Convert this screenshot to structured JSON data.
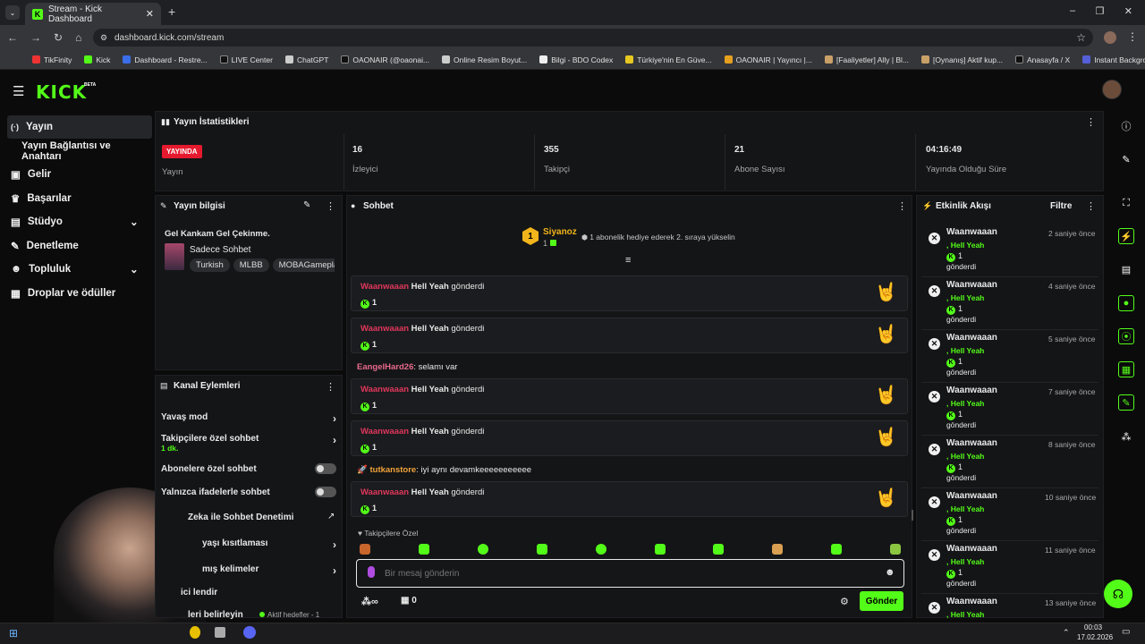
{
  "browser": {
    "tab_title": "Stream - Kick Dashboard",
    "url": "dashboard.kick.com/stream",
    "bookmarks": [
      "TikFinity",
      "Kick",
      "Dashboard - Restre...",
      "LIVE Center",
      "ChatGPT",
      "OAONAIR (@oaonai...",
      "Online Resim Boyut...",
      "Bilgi - BDO Codex",
      "Türkiye'nin En Güve...",
      "OAONAIR | Yayıncı |...",
      "[Faaliyetler] Ally | Bl...",
      "[Oynanış] Aktif kup...",
      "Anasayfa / X",
      "Instant Background..."
    ]
  },
  "brand": {
    "logo": "KICK",
    "beta": "BETA",
    "accent": "#53fc18"
  },
  "sidebar": {
    "items": [
      {
        "label": "Yayın"
      },
      {
        "label": "Yayın Bağlantısı ve Anahtarı"
      },
      {
        "label": "Gelir"
      },
      {
        "label": "Başarılar"
      },
      {
        "label": "Stüdyo"
      },
      {
        "label": "Denetleme"
      },
      {
        "label": "Topluluk"
      },
      {
        "label": "Droplar ve ödüller"
      }
    ]
  },
  "stats": {
    "title": "Yayın İstatistikleri",
    "live_badge": "YAYINDA",
    "live_label": "Yayın",
    "items": [
      {
        "value": "16",
        "label": "İzleyici"
      },
      {
        "value": "355",
        "label": "Takipçi"
      },
      {
        "value": "21",
        "label": "Abone Sayısı"
      },
      {
        "value": "04:16:49",
        "label": "Yayında Olduğu Süre"
      }
    ]
  },
  "stream_info": {
    "title": "Yayın bilgisi",
    "stream_title": "Gel Kankam Gel Çekinme.",
    "category": "Sadece Sohbet",
    "tags": [
      "Turkish",
      "MLBB",
      "MOBAGamepla"
    ]
  },
  "channel_actions": {
    "title": "Kanal Eylemleri",
    "items": [
      "Yavaş mod",
      "Takipçilere özel sohbet",
      "Abonelere özel sohbet",
      "Yalnızca ifadelerle sohbet",
      "Zeka ile Sohbet Denetimi",
      "yaşı kısıtlaması",
      "mış kelimeler",
      "ici lendir",
      "leri belirleyin"
    ],
    "followers_sub": "1 dk.",
    "active_goals": "Aktif hedefler - 1"
  },
  "chat": {
    "title": "Sohbet",
    "top_gifter": {
      "name": "Siyanoz",
      "rank": "1",
      "count": "1"
    },
    "promo": "1 abonelik hediye ederek 2. sıraya yükselin",
    "messages": [
      {
        "type": "gift",
        "user": "Waanwaaan",
        "gift": "Hell Yeah",
        "verb": "gönderdi",
        "count": "1"
      },
      {
        "type": "gift",
        "user": "Waanwaaan",
        "gift": "Hell Yeah",
        "verb": "gönderdi",
        "count": "1"
      },
      {
        "type": "text",
        "user": "EangelHard26",
        "text": "selamı var"
      },
      {
        "type": "gift",
        "user": "Waanwaaan",
        "gift": "Hell Yeah",
        "verb": "gönderdi",
        "count": "1"
      },
      {
        "type": "gift",
        "user": "Waanwaaan",
        "gift": "Hell Yeah",
        "verb": "gönderdi",
        "count": "1"
      },
      {
        "type": "text",
        "user": "tutkanstore",
        "text": "iyi aynı devamkeeeeeeeeeee"
      },
      {
        "type": "gift",
        "user": "Waanwaaan",
        "gift": "Hell Yeah",
        "verb": "gönderdi",
        "count": "1"
      }
    ],
    "followers_only": "Takipçilere Özel",
    "input_placeholder": "Bir mesaj gönderin",
    "points": "∞",
    "chests": "0",
    "send_label": "Gönder"
  },
  "activity": {
    "title": "Etkinlik Akışı",
    "filter": "Filtre",
    "events": [
      {
        "user": "Waanwaaan",
        "gift": "Hell Yeah",
        "count": "1",
        "verb": "gönderdi",
        "time": "2 saniye önce"
      },
      {
        "user": "Waanwaaan",
        "gift": "Hell Yeah",
        "count": "1",
        "verb": "gönderdi",
        "time": "4 saniye önce"
      },
      {
        "user": "Waanwaaan",
        "gift": "Hell Yeah",
        "count": "1",
        "verb": "gönderdi",
        "time": "5 saniye önce"
      },
      {
        "user": "Waanwaaan",
        "gift": "Hell Yeah",
        "count": "1",
        "verb": "gönderdi",
        "time": "7 saniye önce"
      },
      {
        "user": "Waanwaaan",
        "gift": "Hell Yeah",
        "count": "1",
        "verb": "gönderdi",
        "time": "8 saniye önce"
      },
      {
        "user": "Waanwaaan",
        "gift": "Hell Yeah",
        "count": "1",
        "verb": "gönderdi",
        "time": "10 saniye önce"
      },
      {
        "user": "Waanwaaan",
        "gift": "Hell Yeah",
        "count": "1",
        "verb": "gönderdi",
        "time": "11 saniye önce"
      },
      {
        "user": "Waanwaaan",
        "gift": "Hell Yeah",
        "count": "",
        "verb": "",
        "time": "13 saniye önce"
      }
    ]
  },
  "taskbar": {
    "time": "00:03",
    "date": "17.02.2026"
  }
}
